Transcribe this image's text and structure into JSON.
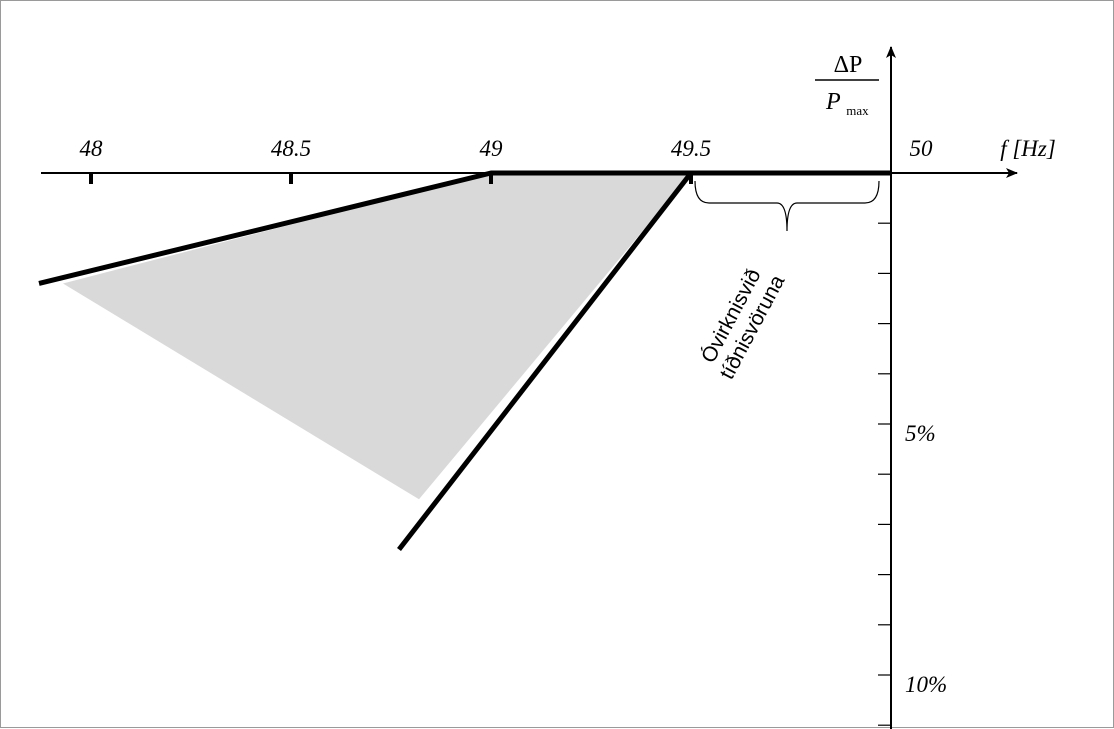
{
  "chart_data": {
    "type": "line",
    "x_axis": {
      "label": "f [Hz]",
      "ticks": [
        "48",
        "48.5",
        "49",
        "49.5",
        "50"
      ],
      "range": [
        47.9,
        50.3
      ]
    },
    "y_axis": {
      "label_numerator": "ΔP",
      "label_denominator_var": "P",
      "label_denominator_sub": "max",
      "tick_labels": [
        {
          "value": 5,
          "text": "5%"
        },
        {
          "value": 10,
          "text": "10%"
        }
      ],
      "minor_tick_step": 1,
      "range": [
        0,
        11
      ]
    },
    "series": [
      {
        "points": [
          [
            47.87,
            2.2
          ],
          [
            49.0,
            0
          ],
          [
            50.0,
            0
          ]
        ]
      },
      {
        "points": [
          [
            48.77,
            7.5
          ],
          [
            49.5,
            0
          ]
        ]
      }
    ],
    "shaded_region": {
      "color": "#d9d9d9",
      "points": [
        [
          47.93,
          2.2
        ],
        [
          49.0,
          0
        ],
        [
          49.5,
          0
        ],
        [
          48.82,
          6.5
        ]
      ]
    },
    "band": {
      "from": 49.5,
      "to": 49.97,
      "label_line1": "Óvirknisvið",
      "label_line2": "tíðnisvöruna"
    }
  }
}
